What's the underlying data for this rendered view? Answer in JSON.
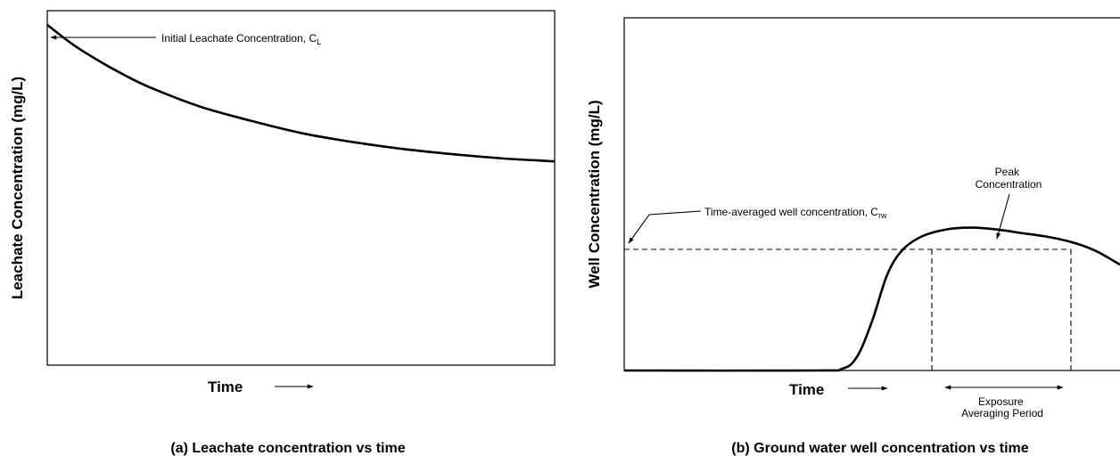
{
  "chart_data": [
    {
      "id": "panel_a",
      "type": "line",
      "caption": "(a) Leachate concentration vs time",
      "xlabel": "Time",
      "ylabel": "Leachate Concentration (mg/L)",
      "ylim": [
        0,
        1
      ],
      "xlim": [
        0,
        1
      ],
      "grid": false,
      "series": [
        {
          "x": [
            0,
            0.05,
            0.1,
            0.15,
            0.2,
            0.3,
            0.4,
            0.5,
            0.6,
            0.7,
            0.8,
            0.9,
            1.0
          ],
          "y": [
            0.96,
            0.905,
            0.86,
            0.82,
            0.785,
            0.73,
            0.69,
            0.655,
            0.63,
            0.61,
            0.595,
            0.583,
            0.575
          ]
        }
      ],
      "annotations": [
        {
          "label": "Initial Leachate Concentration, C",
          "subscript": "L"
        }
      ]
    },
    {
      "id": "panel_b",
      "type": "line",
      "caption": "(b) Ground water well concentration vs time",
      "xlabel": "Time",
      "ylabel": "Well Concentration (mg/L)",
      "ylim": [
        0,
        1
      ],
      "xlim": [
        0,
        1
      ],
      "grid": false,
      "series": [
        {
          "x": [
            0,
            0.38,
            0.44,
            0.47,
            0.5,
            0.53,
            0.56,
            0.6,
            0.65,
            0.7,
            0.75,
            0.8,
            0.85,
            0.9,
            0.95,
            1.0
          ],
          "y": [
            0,
            0,
            0.005,
            0.04,
            0.14,
            0.27,
            0.34,
            0.38,
            0.4,
            0.405,
            0.4,
            0.39,
            0.38,
            0.365,
            0.34,
            0.3
          ]
        }
      ],
      "reference_line": {
        "y": 0.37,
        "style": "dashed"
      },
      "averaging_period": {
        "x_start": 0.6,
        "x_end": 0.88,
        "style": "dashed"
      },
      "annotations": [
        {
          "label": "Time-averaged well concentration, C",
          "subscript": "rw"
        },
        {
          "label_lines": [
            "Peak",
            "Concentration"
          ]
        },
        {
          "label_lines": [
            "Exposure",
            "Averaging Period"
          ]
        }
      ]
    }
  ]
}
